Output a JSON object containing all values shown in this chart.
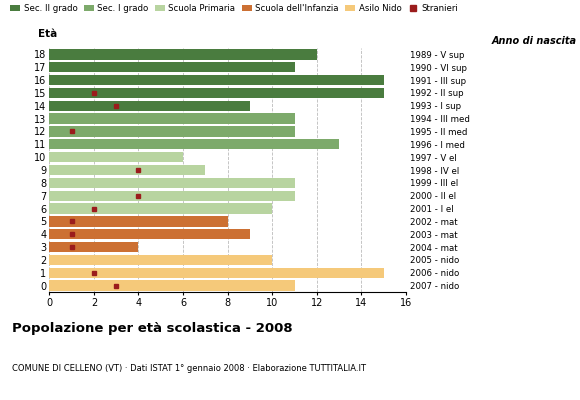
{
  "ages": [
    18,
    17,
    16,
    15,
    14,
    13,
    12,
    11,
    10,
    9,
    8,
    7,
    6,
    5,
    4,
    3,
    2,
    1,
    0
  ],
  "bar_values": [
    12,
    11,
    15,
    15,
    9,
    11,
    11,
    13,
    6,
    7,
    11,
    11,
    10,
    8,
    9,
    4,
    10,
    15,
    11
  ],
  "bar_colors": [
    "#4a7c3f",
    "#4a7c3f",
    "#4a7c3f",
    "#4a7c3f",
    "#4a7c3f",
    "#7daa6b",
    "#7daa6b",
    "#7daa6b",
    "#b8d4a0",
    "#b8d4a0",
    "#b8d4a0",
    "#b8d4a0",
    "#b8d4a0",
    "#cc7033",
    "#cc7033",
    "#cc7033",
    "#f5c97a",
    "#f5c97a",
    "#f5c97a"
  ],
  "stranieri": [
    0,
    0,
    0,
    2,
    3,
    0,
    1,
    0,
    0,
    4,
    0,
    4,
    2,
    1,
    1,
    1,
    0,
    2,
    3
  ],
  "right_labels": [
    "1989 - V sup",
    "1990 - VI sup",
    "1991 - III sup",
    "1992 - II sup",
    "1993 - I sup",
    "1994 - III med",
    "1995 - II med",
    "1996 - I med",
    "1997 - V el",
    "1998 - IV el",
    "1999 - III el",
    "2000 - II el",
    "2001 - I el",
    "2002 - mat",
    "2003 - mat",
    "2004 - mat",
    "2005 - nido",
    "2006 - nido",
    "2007 - nido"
  ],
  "legend_labels": [
    "Sec. II grado",
    "Sec. I grado",
    "Scuola Primaria",
    "Scuola dell'Infanzia",
    "Asilo Nido",
    "Stranieri"
  ],
  "legend_colors": [
    "#4a7c3f",
    "#7daa6b",
    "#b8d4a0",
    "#cc7033",
    "#f5c97a",
    "#9b1c1c"
  ],
  "title": "Popolazione per età scolastica - 2008",
  "subtitle": "COMUNE DI CELLENO (VT) · Dati ISTAT 1° gennaio 2008 · Elaborazione TUTTITALIA.IT",
  "xlabel_left": "Età",
  "xlabel_right": "Anno di nascita",
  "xlim": [
    0,
    16
  ],
  "bg_color": "#ffffff",
  "bar_height": 0.8,
  "grid_color": "#bbbbbb"
}
